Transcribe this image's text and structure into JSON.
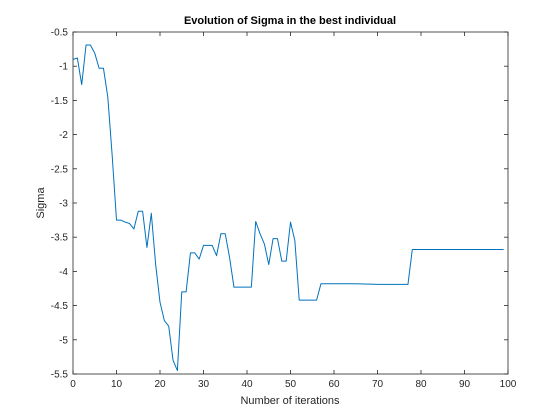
{
  "chart_data": {
    "type": "line",
    "title": "Evolution of Sigma in the best individual",
    "xlabel": "Number of iterations",
    "ylabel": "Sigma",
    "xlim": [
      0,
      100
    ],
    "ylim": [
      -5.5,
      -0.5
    ],
    "xticks": [
      0,
      10,
      20,
      30,
      40,
      50,
      60,
      70,
      80,
      90,
      100
    ],
    "yticks": [
      -5.5,
      -5,
      -4.5,
      -4,
      -3.5,
      -3,
      -2.5,
      -2,
      -1.5,
      -1,
      -0.5
    ],
    "xtick_labels": [
      "0",
      "10",
      "20",
      "30",
      "40",
      "50",
      "60",
      "70",
      "80",
      "90",
      "100"
    ],
    "ytick_labels": [
      "-5.5",
      "-5",
      "-4.5",
      "-4",
      "-3.5",
      "-3",
      "-2.5",
      "-2",
      "-1.5",
      "-1",
      "-0.5"
    ],
    "grid": false,
    "series": [
      {
        "name": "Sigma",
        "color": "#0072BD",
        "x": [
          0,
          1,
          2,
          3,
          4,
          5,
          6,
          7,
          8,
          9,
          10,
          11,
          12,
          13,
          14,
          15,
          16,
          17,
          18,
          19,
          20,
          21,
          22,
          23,
          24,
          25,
          26,
          27,
          28,
          29,
          30,
          31,
          32,
          33,
          34,
          35,
          36,
          37,
          38,
          39,
          40,
          41,
          42,
          43,
          44,
          45,
          46,
          47,
          48,
          49,
          50,
          51,
          52,
          53,
          54,
          55,
          56,
          57,
          60,
          65,
          70,
          75,
          77,
          78,
          79,
          85,
          90,
          95,
          99
        ],
        "values": [
          -0.9,
          -0.88,
          -1.27,
          -0.69,
          -0.69,
          -0.81,
          -1.03,
          -1.03,
          -1.45,
          -2.3,
          -3.25,
          -3.25,
          -3.28,
          -3.3,
          -3.38,
          -3.12,
          -3.12,
          -3.65,
          -3.15,
          -3.9,
          -4.45,
          -4.72,
          -4.8,
          -5.3,
          -5.45,
          -4.3,
          -4.3,
          -3.73,
          -3.73,
          -3.82,
          -3.62,
          -3.62,
          -3.62,
          -3.77,
          -3.45,
          -3.45,
          -3.8,
          -4.23,
          -4.23,
          -4.23,
          -4.23,
          -4.23,
          -3.27,
          -3.45,
          -3.6,
          -3.9,
          -3.52,
          -3.52,
          -3.85,
          -3.85,
          -3.28,
          -3.55,
          -4.42,
          -4.42,
          -4.42,
          -4.42,
          -4.42,
          -4.18,
          -4.18,
          -4.18,
          -4.19,
          -4.19,
          -4.19,
          -3.68,
          -3.68,
          -3.68,
          -3.68,
          -3.68,
          -3.68
        ]
      }
    ]
  }
}
